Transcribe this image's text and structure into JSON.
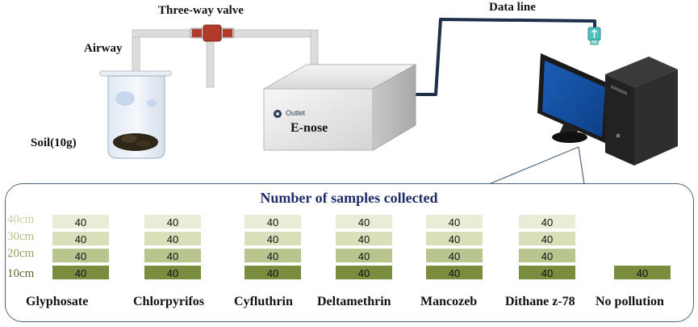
{
  "labels": {
    "valve": "Three-way valve",
    "data_line": "Data line",
    "airway": "Airway",
    "soil": "Soil(10g)",
    "outlet": "Outlet",
    "enose": "E-nose"
  },
  "panel": {
    "title": "Number of samples collected",
    "depths": [
      "40cm",
      "30cm",
      "20cm",
      "10cm"
    ]
  },
  "colors": {
    "depth_40": "#e9ecd7",
    "depth_30": "#d8dfb9",
    "depth_20": "#b9c58f",
    "depth_10": "#7a8c3e",
    "depth_label_40": "#c9cfa4",
    "depth_label_30": "#b3bd86",
    "depth_label_20": "#94a35f",
    "depth_label_10": "#55662a",
    "panel_title": "#1f2e6b"
  },
  "chart_data": {
    "type": "table",
    "title": "Number of samples collected",
    "depths": [
      "40cm",
      "30cm",
      "20cm",
      "10cm"
    ],
    "groups": [
      {
        "name": "Glyphosate",
        "counts": [
          40,
          40,
          40,
          40
        ]
      },
      {
        "name": "Chlorpyrifos",
        "counts": [
          40,
          40,
          40,
          40
        ]
      },
      {
        "name": "Cyfluthrin",
        "counts": [
          40,
          40,
          40,
          40
        ]
      },
      {
        "name": "Deltamethrin",
        "counts": [
          40,
          40,
          40,
          40
        ]
      },
      {
        "name": "Mancozeb",
        "counts": [
          40,
          40,
          40,
          40
        ]
      },
      {
        "name": "Dithane z-78",
        "counts": [
          40,
          40,
          40,
          40
        ]
      },
      {
        "name": "No pollution",
        "counts": [
          null,
          null,
          null,
          40
        ]
      }
    ]
  }
}
